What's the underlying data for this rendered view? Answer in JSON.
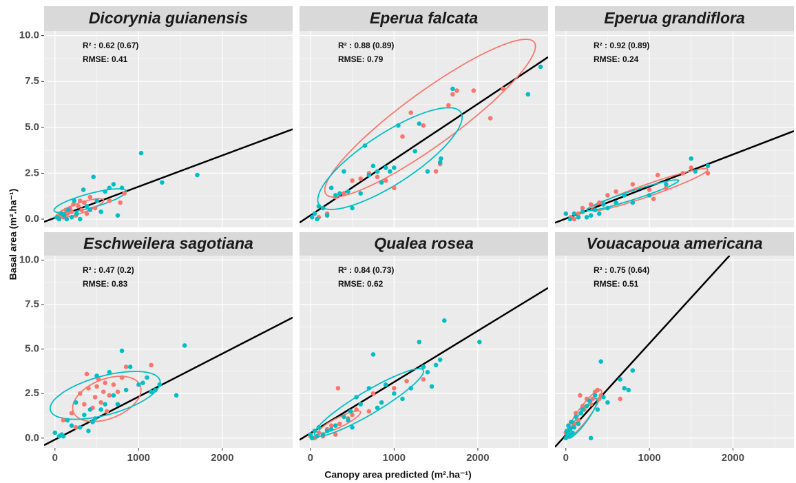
{
  "x_label": "Canopy area predicted (m².ha⁻¹)",
  "y_label": "Basal area (m².ha⁻¹)",
  "xticks": [
    0,
    1000,
    2000
  ],
  "yticks": [
    {
      "value": 0,
      "label": "0.0"
    },
    {
      "value": 2.5,
      "label": "2.5"
    },
    {
      "value": 5,
      "label": "5.0"
    },
    {
      "value": 7.5,
      "label": "7.5"
    },
    {
      "value": 10,
      "label": "10.0"
    }
  ],
  "chart_data": [
    {
      "type": "scatter",
      "title": "Dicorynia guianensis",
      "annotations": [
        "R² : 0.62 (0.67)",
        "RMSE: 0.41"
      ],
      "xlim": [
        -130,
        2840
      ],
      "ylim": [
        -0.45,
        10.25
      ],
      "fit_line": {
        "x": [
          -130,
          2840
        ],
        "values": [
          -0.15,
          4.9
        ]
      },
      "ellipses": [
        {
          "color": "#f8766d",
          "center": [
            300,
            0.6
          ],
          "axis1": [
            280,
            0.45
          ],
          "axis2": [
            -30,
            0.25
          ]
        },
        {
          "color": "#00bfc4",
          "center": [
            420,
            1.0
          ],
          "axis1": [
            430,
            0.55
          ],
          "axis2": [
            -40,
            0.35
          ]
        }
      ],
      "series": [
        {
          "color": "#f8766d",
          "x": [
            30,
            60,
            100,
            130,
            150,
            180,
            200,
            220,
            250,
            280,
            300,
            320,
            350,
            380,
            420,
            480,
            650,
            780,
            830
          ],
          "values": [
            0.1,
            0.2,
            0.1,
            0.5,
            0.3,
            0.6,
            0.4,
            0.8,
            0.2,
            0.7,
            1.0,
            0.5,
            0.9,
            0.3,
            1.2,
            0.6,
            1.0,
            0.9,
            1.4
          ]
        },
        {
          "color": "#00bfc4",
          "x": [
            20,
            50,
            80,
            110,
            140,
            160,
            200,
            230,
            260,
            300,
            340,
            380,
            420,
            460,
            500,
            550,
            600,
            650,
            700,
            750,
            800,
            1030,
            1280,
            1700
          ],
          "values": [
            0.1,
            0.0,
            0.3,
            0.2,
            0.0,
            0.5,
            0.1,
            1.0,
            0.3,
            0.0,
            1.6,
            0.7,
            0.5,
            2.3,
            1.0,
            0.4,
            1.5,
            1.7,
            1.9,
            0.2,
            1.7,
            3.6,
            2.0,
            2.4
          ]
        }
      ]
    },
    {
      "type": "scatter",
      "title": "Eperua falcata",
      "annotations": [
        "R² : 0.88 (0.89)",
        "RMSE: 0.79"
      ],
      "xlim": [
        -130,
        2840
      ],
      "ylim": [
        -0.45,
        10.25
      ],
      "fit_line": {
        "x": [
          -130,
          2840
        ],
        "values": [
          -0.19,
          8.83
        ]
      },
      "ellipses": [
        {
          "color": "#f8766d",
          "center": [
            1430,
            5.5
          ],
          "axis1": [
            1250,
            4.1
          ],
          "axis2": [
            150,
            -1.3
          ]
        },
        {
          "color": "#00bfc4",
          "center": [
            950,
            3.3
          ],
          "axis1": [
            850,
            2.5
          ],
          "axis2": [
            150,
            -1.2
          ]
        }
      ],
      "series": [
        {
          "color": "#f8766d",
          "x": [
            100,
            200,
            300,
            400,
            500,
            600,
            700,
            800,
            900,
            1000,
            1100,
            1200,
            1350,
            1500,
            1550,
            1650,
            1700,
            1750,
            1950,
            2150,
            2300
          ],
          "values": [
            0.1,
            0.3,
            1.2,
            1.4,
            2.1,
            2.2,
            2.5,
            2.3,
            2.1,
            1.7,
            4.5,
            5.8,
            5.1,
            2.6,
            3.0,
            6.2,
            6.8,
            7.0,
            7.0,
            5.5,
            7.1
          ]
        },
        {
          "color": "#00bfc4",
          "x": [
            20,
            50,
            80,
            100,
            150,
            200,
            250,
            300,
            350,
            400,
            450,
            500,
            600,
            650,
            700,
            750,
            800,
            850,
            900,
            950,
            1000,
            1050,
            1250,
            1300,
            1400,
            1550,
            1560,
            1700,
            2600,
            2750
          ],
          "values": [
            0.1,
            0.3,
            0.0,
            0.7,
            0.6,
            0.2,
            1.7,
            1.3,
            1.4,
            2.6,
            1.5,
            0.6,
            1.4,
            4.0,
            2.4,
            2.9,
            2.6,
            2.0,
            2.8,
            2.6,
            2.8,
            5.1,
            3.7,
            5.2,
            2.6,
            3.1,
            3.3,
            7.1,
            6.8,
            8.3
          ]
        }
      ]
    },
    {
      "type": "scatter",
      "title": "Eperua grandiflora",
      "annotations": [
        "R² : 0.92 (0.89)",
        "RMSE: 0.24"
      ],
      "xlim": [
        -130,
        2730
      ],
      "ylim": [
        -0.45,
        10.25
      ],
      "fit_line": {
        "x": [
          -130,
          2730
        ],
        "values": [
          -0.2,
          4.8
        ]
      },
      "ellipses": [
        {
          "color": "#f8766d",
          "center": [
            1000,
            1.6
          ],
          "axis1": [
            700,
            1.1
          ],
          "axis2": [
            0,
            0.35
          ]
        },
        {
          "color": "#00bfc4",
          "center": [
            800,
            1.3
          ],
          "axis1": [
            550,
            0.8
          ],
          "axis2": [
            0,
            0.25
          ]
        }
      ],
      "series": [
        {
          "color": "#f8766d",
          "x": [
            60,
            100,
            150,
            200,
            300,
            400,
            500,
            600,
            800,
            1000,
            1050,
            1100,
            1200,
            1400,
            1500,
            1700
          ],
          "values": [
            0.1,
            0.0,
            0.3,
            0.6,
            0.8,
            0.9,
            1.3,
            1.5,
            1.9,
            1.6,
            1.1,
            2.4,
            1.7,
            2.5,
            2.8,
            2.5
          ]
        },
        {
          "color": "#00bfc4",
          "x": [
            0,
            50,
            100,
            150,
            200,
            250,
            300,
            350,
            400,
            450,
            500,
            600,
            700,
            800,
            1000,
            1200,
            1500,
            1550,
            1700
          ],
          "values": [
            0.3,
            0.0,
            0.3,
            0.1,
            0.4,
            0.1,
            0.2,
            0.5,
            0.3,
            0.8,
            0.6,
            0.9,
            1.3,
            0.9,
            1.3,
            1.9,
            3.3,
            2.6,
            2.9
          ]
        }
      ]
    },
    {
      "type": "scatter",
      "title": "Eschweilera sagotiana",
      "annotations": [
        "R² : 0.47 (0.2)",
        "RMSE: 0.83"
      ],
      "xlim": [
        -130,
        2840
      ],
      "ylim": [
        -0.55,
        10.25
      ],
      "fit_line": {
        "x": [
          -130,
          2840
        ],
        "values": [
          -0.4,
          6.77
        ]
      },
      "ellipses": [
        {
          "color": "#f8766d",
          "center": [
            620,
            2.2
          ],
          "axis1": [
            380,
            0.9
          ],
          "axis2": [
            -150,
            0.9
          ]
        },
        {
          "color": "#00bfc4",
          "center": [
            600,
            2.4
          ],
          "axis1": [
            650,
            0.9
          ],
          "axis2": [
            -100,
            1.0
          ]
        }
      ],
      "series": [
        {
          "color": "#f8766d",
          "x": [
            100,
            200,
            250,
            300,
            350,
            380,
            400,
            450,
            480,
            500,
            520,
            550,
            580,
            600,
            620,
            650,
            700,
            750,
            800,
            850,
            1150
          ],
          "values": [
            1.0,
            1.4,
            0.6,
            2.5,
            1.9,
            3.6,
            2.8,
            1.7,
            2.3,
            2.9,
            3.3,
            2.0,
            2.6,
            3.1,
            1.5,
            2.4,
            3.0,
            2.6,
            3.4,
            4.0,
            4.1
          ]
        },
        {
          "color": "#00bfc4",
          "x": [
            0,
            50,
            80,
            100,
            150,
            200,
            250,
            300,
            350,
            400,
            420,
            450,
            480,
            500,
            550,
            600,
            650,
            700,
            750,
            800,
            850,
            900,
            1000,
            1050,
            1100,
            1150,
            1200,
            1250,
            1450,
            1550
          ],
          "values": [
            0.3,
            0.1,
            0.2,
            0.1,
            1.0,
            0.7,
            2.0,
            0.6,
            1.3,
            0.4,
            1.6,
            0.9,
            1.1,
            3.5,
            1.6,
            1.9,
            3.7,
            2.4,
            1.9,
            4.9,
            2.7,
            4.0,
            3.0,
            3.1,
            3.4,
            2.6,
            2.7,
            3.0,
            2.4,
            5.2
          ]
        }
      ]
    },
    {
      "type": "scatter",
      "title": "Qualea rosea",
      "annotations": [
        "R² : 0.84 (0.73)",
        "RMSE: 0.62"
      ],
      "xlim": [
        -130,
        2840
      ],
      "ylim": [
        -0.55,
        10.25
      ],
      "fit_line": {
        "x": [
          -130,
          2840
        ],
        "values": [
          -0.1,
          8.44
        ]
      },
      "ellipses": [
        {
          "color": "#f8766d",
          "center": [
            350,
            0.9
          ],
          "axis1": [
            250,
            0.55
          ],
          "axis2": [
            0,
            0.3
          ]
        },
        {
          "color": "#00bfc4",
          "center": [
            700,
            2.0
          ],
          "axis1": [
            650,
            1.8
          ],
          "axis2": [
            50,
            -0.6
          ]
        }
      ],
      "series": [
        {
          "color": "#f8766d",
          "x": [
            0,
            50,
            100,
            150,
            200,
            250,
            300,
            330,
            350,
            400,
            450,
            500,
            550,
            700,
            750,
            1000,
            1150,
            1350
          ],
          "values": [
            0.1,
            0.0,
            0.3,
            0.1,
            0.5,
            0.7,
            0.2,
            2.8,
            0.8,
            1.2,
            1.1,
            1.3,
            1.6,
            1.5,
            2.5,
            2.8,
            3.2,
            3.3
          ]
        },
        {
          "color": "#00bfc4",
          "x": [
            0,
            20,
            50,
            80,
            100,
            150,
            200,
            250,
            300,
            400,
            450,
            480,
            500,
            550,
            600,
            700,
            750,
            800,
            850,
            900,
            1000,
            1100,
            1200,
            1300,
            1350,
            1400,
            1450,
            1500,
            1550,
            1600,
            2020
          ],
          "values": [
            0.2,
            0.0,
            0.4,
            0.1,
            0.6,
            0.2,
            0.4,
            0.5,
            0.7,
            1.2,
            1.0,
            1.5,
            0.6,
            2.3,
            1.9,
            2.8,
            4.7,
            1.7,
            2.0,
            3.0,
            2.5,
            2.2,
            2.8,
            5.4,
            4.0,
            3.7,
            2.9,
            4.1,
            4.4,
            6.6,
            5.4
          ]
        }
      ]
    },
    {
      "type": "scatter",
      "title": "Vouacapoua americana",
      "annotations": [
        "R² : 0.75 (0.64)",
        "RMSE: 0.51"
      ],
      "xlim": [
        -130,
        2730
      ],
      "ylim": [
        -0.55,
        10.25
      ],
      "fit_line": {
        "x": [
          -130,
          1959
        ],
        "values": [
          -0.5,
          10.25
        ]
      },
      "ellipses": [
        {
          "color": "#f8766d",
          "center": [
            220,
            1.4
          ],
          "axis1": [
            200,
            1.3
          ],
          "axis2": [
            -60,
            0.2
          ]
        },
        {
          "color": "#00bfc4",
          "center": [
            200,
            1.1
          ],
          "axis1": [
            170,
            1.1
          ],
          "axis2": [
            -50,
            0.15
          ]
        }
      ],
      "series": [
        {
          "color": "#f8766d",
          "x": [
            0,
            20,
            40,
            60,
            80,
            100,
            120,
            150,
            170,
            200,
            220,
            250,
            300,
            320,
            350,
            380,
            400,
            420,
            650
          ],
          "values": [
            0.3,
            0.1,
            0.6,
            0.9,
            0.3,
            0.8,
            1.4,
            1.0,
            2.4,
            1.8,
            1.6,
            2.2,
            1.9,
            2.2,
            2.6,
            2.7,
            2.2,
            2.4,
            2.2
          ]
        },
        {
          "color": "#00bfc4",
          "x": [
            0,
            10,
            20,
            30,
            40,
            50,
            60,
            70,
            80,
            100,
            120,
            150,
            180,
            200,
            250,
            280,
            300,
            350,
            380,
            420,
            450,
            500,
            650,
            700,
            750,
            800
          ],
          "values": [
            0.0,
            0.4,
            0.2,
            0.7,
            0.1,
            0.5,
            0.2,
            0.9,
            0.3,
            0.6,
            1.2,
            0.8,
            1.4,
            1.6,
            1.8,
            2.1,
            0.0,
            2.4,
            1.6,
            4.3,
            2.3,
            2.0,
            3.3,
            2.8,
            2.7,
            3.8
          ]
        }
      ]
    }
  ]
}
